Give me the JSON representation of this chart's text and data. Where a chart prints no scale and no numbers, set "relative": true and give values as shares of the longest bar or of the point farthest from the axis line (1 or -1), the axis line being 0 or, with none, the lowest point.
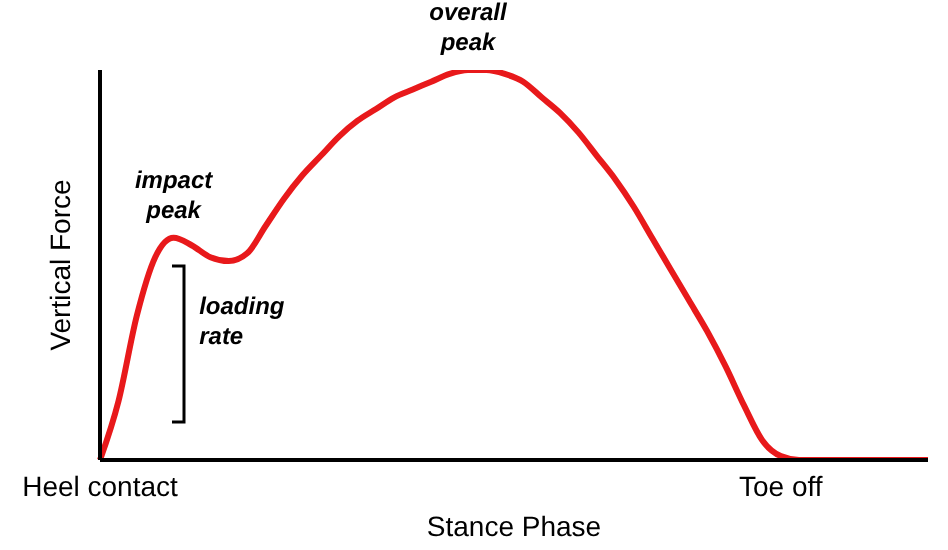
{
  "chart_data": {
    "type": "line",
    "relative": true,
    "xlabel": "Stance Phase",
    "ylabel": "Vertical Force",
    "annotations": [
      "impact\npeak",
      "overall\npeak",
      "loading\nrate"
    ],
    "categories": [
      "Heel contact",
      null,
      null,
      null,
      null,
      null,
      null,
      null,
      null,
      null,
      null,
      null,
      null,
      null,
      null,
      null,
      null,
      null,
      null,
      null,
      null,
      null,
      null,
      null,
      null,
      null,
      null,
      null,
      null,
      null,
      null,
      null,
      null,
      null,
      null,
      null,
      null,
      "Toe off",
      null,
      null,
      null,
      null,
      null,
      null,
      null,
      null
    ],
    "series": [
      {
        "color": "#e8191b",
        "values": [
          0,
          0.15,
          0.37,
          0.52,
          0.57,
          0.55,
          0.52,
          0.51,
          0.53,
          0.6,
          0.67,
          0.73,
          0.78,
          0.83,
          0.87,
          0.9,
          0.93,
          0.95,
          0.97,
          0.99,
          1,
          1,
          0.99,
          0.97,
          0.93,
          0.89,
          0.84,
          0.78,
          0.72,
          0.65,
          0.57,
          0.49,
          0.41,
          0.33,
          0.24,
          0.14,
          0.05,
          0.01,
          0,
          0,
          0,
          0,
          0,
          0,
          0,
          0
        ]
      }
    ],
    "marker": "none",
    "line_style": "solid"
  }
}
